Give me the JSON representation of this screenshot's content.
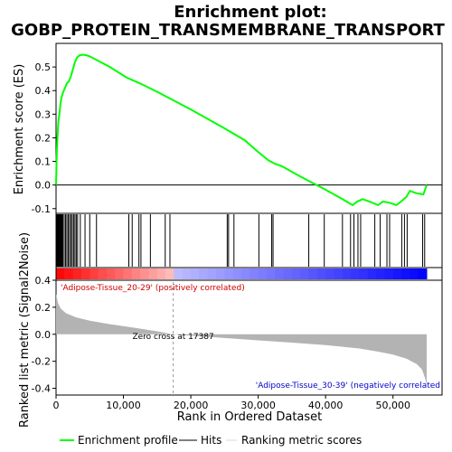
{
  "title_line1": "Enrichment plot:",
  "title_line2": "GOBP_PROTEIN_TRANSMEMBRANE_TRANSPORT",
  "colors": {
    "es_line": "#00ff00",
    "hit": "#000000",
    "metric_fill": "#b3b3b3",
    "pos_label": "#cc0000",
    "neg_label": "#0000cc",
    "heat_pos": "#ff0000",
    "heat_neg": "#0000ff"
  },
  "legend": {
    "es": "Enrichment profile",
    "hits": "Hits",
    "metric": "Ranking metric scores"
  },
  "chart_data": [
    {
      "type": "line",
      "name": "enrichment-profile",
      "ylabel": "Enrichment score (ES)",
      "xlim": [
        0,
        57500
      ],
      "ylim": [
        -0.12,
        0.6
      ],
      "yticks": [
        -0.1,
        0.0,
        0.1,
        0.2,
        0.3,
        0.4,
        0.5
      ],
      "ytick_labels": [
        "-0.1",
        "0.0",
        "0.1",
        "0.2",
        "0.3",
        "0.4",
        "0.5"
      ],
      "points": [
        [
          0,
          0.0
        ],
        [
          100,
          0.12
        ],
        [
          200,
          0.2
        ],
        [
          350,
          0.27
        ],
        [
          500,
          0.3
        ],
        [
          650,
          0.34
        ],
        [
          800,
          0.37
        ],
        [
          1000,
          0.39
        ],
        [
          1300,
          0.41
        ],
        [
          1600,
          0.43
        ],
        [
          1900,
          0.44
        ],
        [
          2200,
          0.46
        ],
        [
          2500,
          0.49
        ],
        [
          2800,
          0.52
        ],
        [
          3100,
          0.54
        ],
        [
          3500,
          0.55
        ],
        [
          4000,
          0.552
        ],
        [
          4500,
          0.55
        ],
        [
          5000,
          0.545
        ],
        [
          6000,
          0.53
        ],
        [
          8000,
          0.5
        ],
        [
          10500,
          0.455
        ],
        [
          12500,
          0.43
        ],
        [
          15000,
          0.395
        ],
        [
          20000,
          0.32
        ],
        [
          25000,
          0.24
        ],
        [
          28000,
          0.19
        ],
        [
          30000,
          0.14
        ],
        [
          31500,
          0.105
        ],
        [
          32500,
          0.09
        ],
        [
          33500,
          0.08
        ],
        [
          36000,
          0.04
        ],
        [
          38000,
          0.01
        ],
        [
          40000,
          -0.02
        ],
        [
          42500,
          -0.06
        ],
        [
          44000,
          -0.085
        ],
        [
          44700,
          -0.07
        ],
        [
          45500,
          -0.06
        ],
        [
          46500,
          -0.07
        ],
        [
          47800,
          -0.085
        ],
        [
          48500,
          -0.07
        ],
        [
          49500,
          -0.075
        ],
        [
          50500,
          -0.085
        ],
        [
          51200,
          -0.07
        ],
        [
          52000,
          -0.05
        ],
        [
          52500,
          -0.025
        ],
        [
          53500,
          -0.035
        ],
        [
          54500,
          -0.04
        ],
        [
          55000,
          0.0
        ]
      ]
    },
    {
      "type": "hits",
      "name": "gene-set-hits",
      "positions": [
        100,
        200,
        300,
        400,
        500,
        600,
        700,
        800,
        900,
        1000,
        1200,
        1400,
        1600,
        1800,
        2000,
        2200,
        2400,
        2600,
        2800,
        3000,
        3200,
        3600,
        4300,
        5000,
        6000,
        10800,
        11300,
        12300,
        12600,
        14000,
        16200,
        16900,
        25400,
        25600,
        26400,
        30100,
        32000,
        32200,
        37500,
        39800,
        42500,
        43700,
        44200,
        44800,
        45200,
        47300,
        48100,
        49100,
        49500,
        51300,
        51700,
        52100,
        54400,
        54700
      ]
    },
    {
      "type": "area",
      "name": "ranked-list-metric",
      "xlabel": "Rank in Ordered Dataset",
      "ylabel": "Ranked list metric (Signal2Noise)",
      "xlim": [
        0,
        57500
      ],
      "ylim": [
        -0.45,
        0.4
      ],
      "xticks": [
        0,
        10000,
        20000,
        30000,
        40000,
        50000
      ],
      "xtick_labels": [
        "0",
        "10,000",
        "20,000",
        "30,000",
        "40,000",
        "50,000"
      ],
      "yticks": [
        -0.4,
        -0.2,
        0.0,
        0.2,
        0.4
      ],
      "ytick_labels": [
        "-0.4",
        "-0.2",
        "0.0",
        "0.2",
        "0.4"
      ],
      "points": [
        [
          0,
          0.3
        ],
        [
          300,
          0.23
        ],
        [
          700,
          0.19
        ],
        [
          1500,
          0.155
        ],
        [
          3000,
          0.125
        ],
        [
          5000,
          0.1
        ],
        [
          8000,
          0.075
        ],
        [
          12000,
          0.045
        ],
        [
          15000,
          0.022
        ],
        [
          17387,
          0.0
        ],
        [
          20000,
          -0.01
        ],
        [
          25000,
          -0.028
        ],
        [
          30000,
          -0.045
        ],
        [
          35000,
          -0.062
        ],
        [
          40000,
          -0.08
        ],
        [
          45000,
          -0.105
        ],
        [
          48000,
          -0.13
        ],
        [
          50000,
          -0.15
        ],
        [
          52000,
          -0.18
        ],
        [
          53500,
          -0.22
        ],
        [
          54300,
          -0.26
        ],
        [
          54800,
          -0.33
        ],
        [
          55000,
          -0.38
        ]
      ],
      "zero_cross": 17387,
      "zero_cross_label": "Zero cross at 17387",
      "pos_label": "'Adipose-Tissue_20-29' (positively correlated)",
      "neg_label": "'Adipose-Tissue_30-39' (negatively correlated"
    }
  ]
}
